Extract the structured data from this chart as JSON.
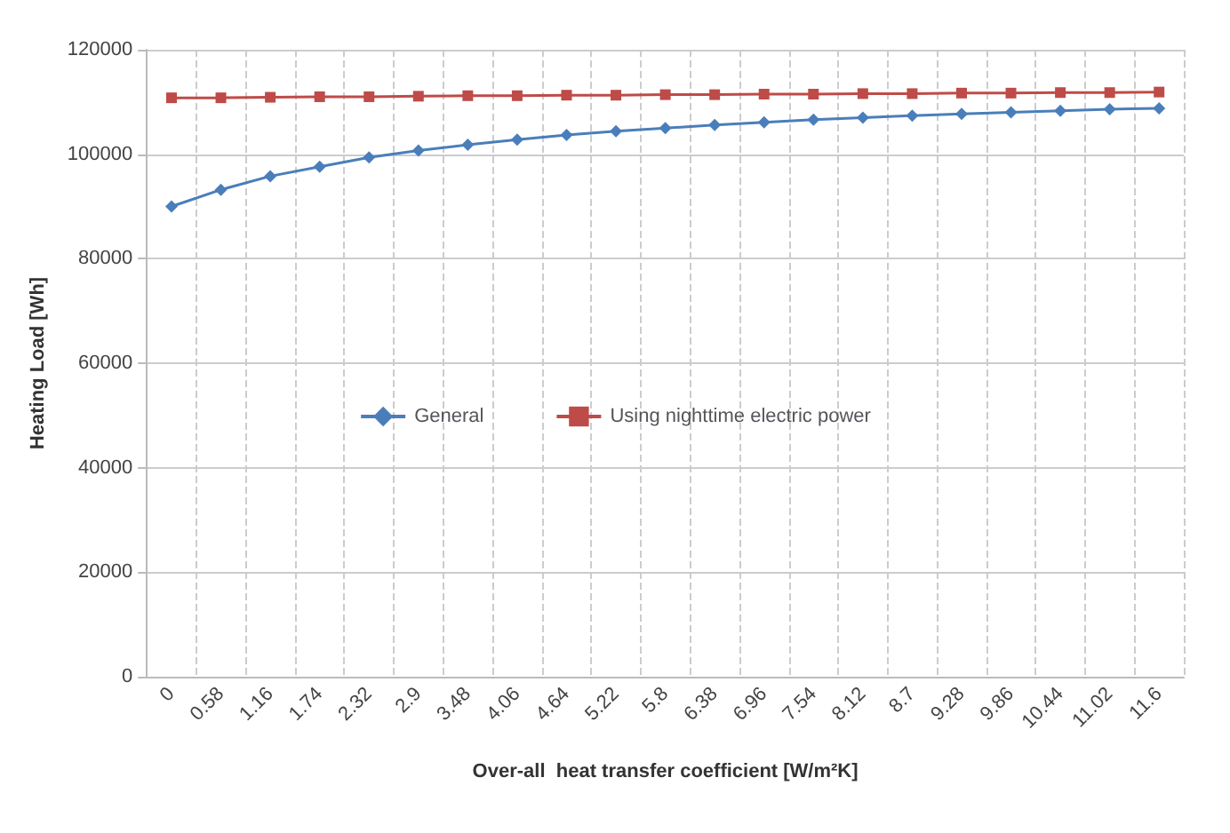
{
  "chart_data": {
    "type": "line",
    "xlabel": "Over-all  heat transfer coefficient [W/m²K]",
    "ylabel": "Heating Load [Wh]",
    "categories": [
      "0",
      "0.58",
      "1.16",
      "1.74",
      "2.32",
      "2.9",
      "3.48",
      "4.06",
      "4.64",
      "5.22",
      "5.8",
      "6.38",
      "6.96",
      "7.54",
      "8.12",
      "8.7",
      "9.28",
      "9.86",
      "10.44",
      "11.02",
      "11.6"
    ],
    "series": [
      {
        "name": "General",
        "color": "#4a7ebb",
        "marker": "diamond",
        "values": [
          90000,
          93200,
          95800,
          97600,
          99400,
          100700,
          101800,
          102800,
          103700,
          104400,
          105000,
          105600,
          106100,
          106600,
          107000,
          107400,
          107700,
          108000,
          108300,
          108600,
          108800
        ]
      },
      {
        "name": "Using nighttime electric power",
        "color": "#be4b48",
        "marker": "square",
        "values": [
          110800,
          110800,
          110900,
          111000,
          111000,
          111100,
          111200,
          111200,
          111300,
          111300,
          111400,
          111400,
          111500,
          111500,
          111600,
          111600,
          111700,
          111700,
          111800,
          111800,
          111900
        ]
      }
    ],
    "ylim": [
      0,
      120000
    ],
    "yticks": [
      0,
      20000,
      40000,
      60000,
      80000,
      100000,
      120000
    ],
    "grid": true,
    "legend": "center",
    "line_style": "solid"
  }
}
